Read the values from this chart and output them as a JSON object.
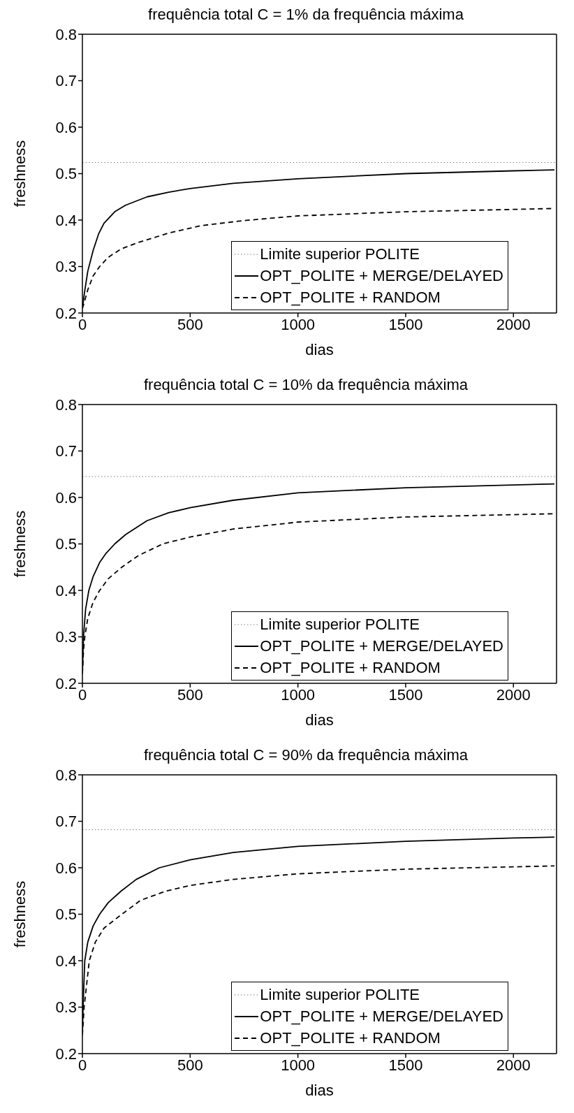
{
  "chart_data": [
    {
      "type": "line",
      "title": "frequência total C = 1% da frequência máxima",
      "xlabel": "dias",
      "ylabel": "freshness",
      "xlim": [
        0,
        2200
      ],
      "xticks": [
        0,
        500,
        1000,
        1500,
        2000
      ],
      "ylim": [
        0.2,
        0.8
      ],
      "yticks": [
        0.2,
        0.3,
        0.4,
        0.5,
        0.6,
        0.7,
        0.8
      ],
      "legend": "bottom right",
      "grid": false,
      "ref_lines": [
        {
          "axis": "y",
          "value": 0.524,
          "label": "Limite superior POLITE",
          "color": "#808080",
          "line_style": "dotted"
        }
      ],
      "series": [
        {
          "name": "OPT_POLITE + MERGE/DELAYED",
          "color": "#000000",
          "line_style": "solid",
          "x": [
            0,
            10,
            25,
            50,
            75,
            100,
            150,
            200,
            300,
            400,
            500,
            700,
            1000,
            1500,
            2000,
            2190
          ],
          "values": [
            0.21,
            0.245,
            0.29,
            0.335,
            0.37,
            0.393,
            0.418,
            0.432,
            0.45,
            0.46,
            0.468,
            0.479,
            0.489,
            0.5,
            0.506,
            0.508
          ]
        },
        {
          "name": "OPT_POLITE + RANDOM",
          "color": "#000000",
          "line_style": "dashed",
          "x": [
            0,
            10,
            25,
            50,
            80,
            120,
            180,
            260,
            400,
            550,
            750,
            1000,
            1500,
            2000,
            2190
          ],
          "values": [
            0.21,
            0.225,
            0.25,
            0.28,
            0.3,
            0.32,
            0.338,
            0.352,
            0.372,
            0.388,
            0.399,
            0.409,
            0.418,
            0.423,
            0.425
          ]
        }
      ]
    },
    {
      "type": "line",
      "title": "frequência total C = 10% da frequência máxima",
      "xlabel": "dias",
      "ylabel": "freshness",
      "xlim": [
        0,
        2200
      ],
      "xticks": [
        0,
        500,
        1000,
        1500,
        2000
      ],
      "ylim": [
        0.2,
        0.8
      ],
      "yticks": [
        0.2,
        0.3,
        0.4,
        0.5,
        0.6,
        0.7,
        0.8
      ],
      "legend": "bottom right",
      "grid": false,
      "ref_lines": [
        {
          "axis": "y",
          "value": 0.645,
          "label": "Limite superior POLITE",
          "color": "#808080",
          "line_style": "dotted"
        }
      ],
      "series": [
        {
          "name": "OPT_POLITE + MERGE/DELAYED",
          "color": "#000000",
          "line_style": "solid",
          "x": [
            0,
            5,
            15,
            30,
            50,
            80,
            110,
            150,
            200,
            300,
            400,
            500,
            700,
            1000,
            1500,
            2000,
            2190
          ],
          "values": [
            0.22,
            0.3,
            0.36,
            0.4,
            0.43,
            0.46,
            0.48,
            0.5,
            0.52,
            0.55,
            0.567,
            0.578,
            0.594,
            0.61,
            0.621,
            0.627,
            0.629
          ]
        },
        {
          "name": "OPT_POLITE + RANDOM",
          "color": "#000000",
          "line_style": "dashed",
          "x": [
            0,
            5,
            11,
            25,
            50,
            80,
            120,
            183,
            260,
            373,
            500,
            700,
            1000,
            1500,
            2000,
            2190
          ],
          "values": [
            0.22,
            0.27,
            0.3,
            0.34,
            0.375,
            0.4,
            0.425,
            0.45,
            0.475,
            0.5,
            0.515,
            0.532,
            0.547,
            0.558,
            0.563,
            0.565
          ]
        }
      ]
    },
    {
      "type": "line",
      "title": "frequência total C = 90% da frequência máxima",
      "xlabel": "dias",
      "ylabel": "freshness",
      "xlim": [
        0,
        2200
      ],
      "xticks": [
        0,
        500,
        1000,
        1500,
        2000
      ],
      "ylim": [
        0.2,
        0.8
      ],
      "yticks": [
        0.2,
        0.3,
        0.4,
        0.5,
        0.6,
        0.7,
        0.8
      ],
      "legend": "bottom right",
      "grid": false,
      "ref_lines": [
        {
          "axis": "y",
          "value": 0.682,
          "label": "Limite superior POLITE",
          "color": "#808080",
          "line_style": "dotted"
        }
      ],
      "series": [
        {
          "name": "OPT_POLITE + MERGE/DELAYED",
          "color": "#000000",
          "line_style": "solid",
          "x": [
            0,
            3,
            11,
            25,
            50,
            80,
            120,
            180,
            250,
            357,
            500,
            700,
            1000,
            1500,
            2000,
            2190
          ],
          "values": [
            0.24,
            0.3,
            0.4,
            0.44,
            0.475,
            0.5,
            0.525,
            0.55,
            0.575,
            0.6,
            0.617,
            0.633,
            0.646,
            0.657,
            0.664,
            0.666
          ]
        },
        {
          "name": "OPT_POLITE + RANDOM",
          "color": "#000000",
          "line_style": "dashed",
          "x": [
            0,
            8,
            32,
            60,
            100,
            183,
            270,
            389,
            500,
            700,
            1000,
            1500,
            2000,
            2190
          ],
          "values": [
            0.24,
            0.3,
            0.4,
            0.44,
            0.47,
            0.5,
            0.53,
            0.55,
            0.562,
            0.575,
            0.587,
            0.597,
            0.602,
            0.604
          ]
        }
      ]
    }
  ]
}
